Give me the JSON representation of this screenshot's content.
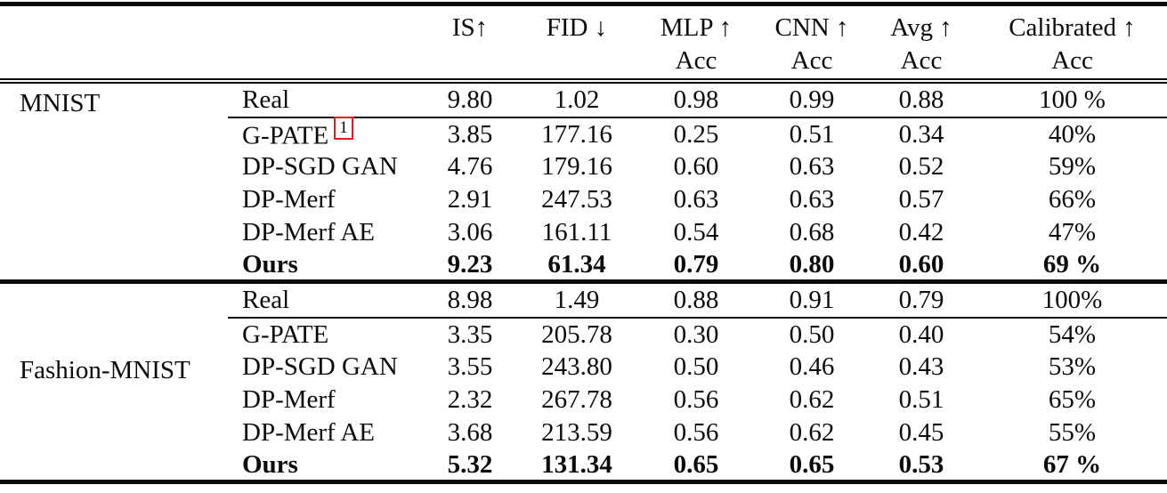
{
  "table": {
    "column_headers": [
      {
        "label": "IS↑",
        "sub": ""
      },
      {
        "label": "FID ↓",
        "sub": ""
      },
      {
        "label": "MLP ↑",
        "sub": "Acc"
      },
      {
        "label": "CNN ↑",
        "sub": "Acc"
      },
      {
        "label": "Avg ↑",
        "sub": "Acc"
      },
      {
        "label": "Calibrated ↑",
        "sub": "Acc"
      }
    ],
    "sections": [
      {
        "dataset": "MNIST",
        "rows": [
          {
            "method": "Real",
            "citation": "",
            "is": "9.80",
            "fid": "1.02",
            "mlp_acc": "0.98",
            "cnn_acc": "0.99",
            "avg_acc": "0.88",
            "calibrated_acc": "100 %"
          },
          {
            "method": "G-PATE",
            "citation": "1",
            "is": "3.85",
            "fid": "177.16",
            "mlp_acc": "0.25",
            "cnn_acc": "0.51",
            "avg_acc": "0.34",
            "calibrated_acc": "40%"
          },
          {
            "method": "DP-SGD GAN",
            "citation": "",
            "is": "4.76",
            "fid": "179.16",
            "mlp_acc": "0.60",
            "cnn_acc": "0.63",
            "avg_acc": "0.52",
            "calibrated_acc": "59%"
          },
          {
            "method": "DP-Merf",
            "citation": "",
            "is": "2.91",
            "fid": "247.53",
            "mlp_acc": "0.63",
            "cnn_acc": "0.63",
            "avg_acc": "0.57",
            "calibrated_acc": "66%"
          },
          {
            "method": "DP-Merf AE",
            "citation": "",
            "is": "3.06",
            "fid": "161.11",
            "mlp_acc": "0.54",
            "cnn_acc": "0.68",
            "avg_acc": "0.42",
            "calibrated_acc": "47%"
          },
          {
            "method": "Ours",
            "citation": "",
            "is": "9.23",
            "fid": "61.34",
            "mlp_acc": "0.79",
            "cnn_acc": "0.80",
            "avg_acc": "0.60",
            "calibrated_acc": "69 %"
          }
        ]
      },
      {
        "dataset": "Fashion-MNIST",
        "rows": [
          {
            "method": "Real",
            "citation": "",
            "is": "8.98",
            "fid": "1.49",
            "mlp_acc": "0.88",
            "cnn_acc": "0.91",
            "avg_acc": "0.79",
            "calibrated_acc": "100%"
          },
          {
            "method": "G-PATE",
            "citation": "",
            "is": "3.35",
            "fid": "205.78",
            "mlp_acc": "0.30",
            "cnn_acc": "0.50",
            "avg_acc": "0.40",
            "calibrated_acc": "54%"
          },
          {
            "method": "DP-SGD GAN",
            "citation": "",
            "is": "3.55",
            "fid": "243.80",
            "mlp_acc": "0.50",
            "cnn_acc": "0.46",
            "avg_acc": "0.43",
            "calibrated_acc": "53%"
          },
          {
            "method": "DP-Merf",
            "citation": "",
            "is": "2.32",
            "fid": "267.78",
            "mlp_acc": "0.56",
            "cnn_acc": "0.62",
            "avg_acc": "0.51",
            "calibrated_acc": "65%"
          },
          {
            "method": "DP-Merf AE",
            "citation": "",
            "is": "3.68",
            "fid": "213.59",
            "mlp_acc": "0.56",
            "cnn_acc": "0.62",
            "avg_acc": "0.45",
            "calibrated_acc": "55%"
          },
          {
            "method": "Ours",
            "citation": "",
            "is": "5.32",
            "fid": "131.34",
            "mlp_acc": "0.65",
            "cnn_acc": "0.65",
            "avg_acc": "0.53",
            "calibrated_acc": "67 %"
          }
        ]
      }
    ]
  },
  "colors": {
    "citation_box": "#e8191d",
    "rule": "#0a0a0a",
    "text": "#0b0b0b",
    "background": "#ffffff"
  }
}
